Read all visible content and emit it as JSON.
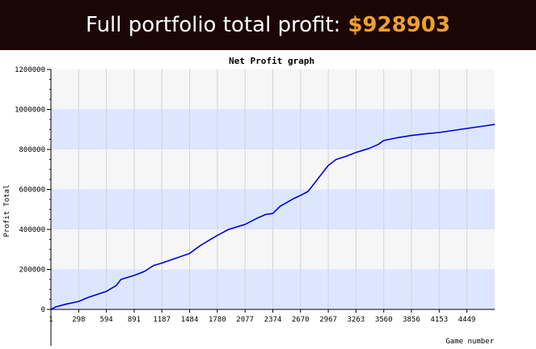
{
  "header": {
    "label": "Full portfolio total profit:",
    "value": "$928903"
  },
  "colors": {
    "banner_bg": "#1b0606",
    "banner_text": "#ffffff",
    "amount": "#f0a030",
    "band_blue": "#dde6ff",
    "band_gray": "#f6f6f6",
    "line": "#0000e0"
  },
  "chart_data": {
    "type": "line",
    "title": "Net Profit graph",
    "xlabel": "Game number",
    "ylabel": "Profit Total",
    "xlim": [
      1,
      4747
    ],
    "ylim": [
      0,
      1200000
    ],
    "x_tick_labels": [
      "1",
      "298",
      "594",
      "891",
      "1187",
      "1484",
      "1780",
      "2077",
      "2374",
      "2670",
      "2967",
      "3263",
      "3560",
      "3856",
      "4153",
      "4449"
    ],
    "y_tick_labels": [
      "0",
      "200000",
      "400000",
      "600000",
      "800000",
      "1000000",
      "1200000"
    ],
    "y_ticks": [
      0,
      200000,
      400000,
      600000,
      800000,
      1000000,
      1200000
    ],
    "grid": true,
    "series": [
      {
        "x": [
          1,
          50,
          150,
          298,
          400,
          594,
          700,
          750,
          891,
          1000,
          1100,
          1187,
          1300,
          1484,
          1600,
          1780,
          1900,
          2077,
          2200,
          2300,
          2374,
          2450,
          2600,
          2670,
          2750,
          2850,
          2967,
          3050,
          3150,
          3263,
          3400,
          3500,
          3560,
          3700,
          3856,
          4000,
          4153,
          4300,
          4449,
          4600,
          4747
        ],
        "y": [
          0,
          12000,
          25000,
          40000,
          60000,
          90000,
          120000,
          150000,
          170000,
          190000,
          220000,
          232000,
          250000,
          280000,
          320000,
          370000,
          400000,
          425000,
          455000,
          475000,
          480000,
          515000,
          555000,
          570000,
          590000,
          650000,
          720000,
          750000,
          765000,
          785000,
          805000,
          825000,
          845000,
          858000,
          870000,
          878000,
          885000,
          895000,
          905000,
          915000,
          925000
        ]
      }
    ]
  }
}
